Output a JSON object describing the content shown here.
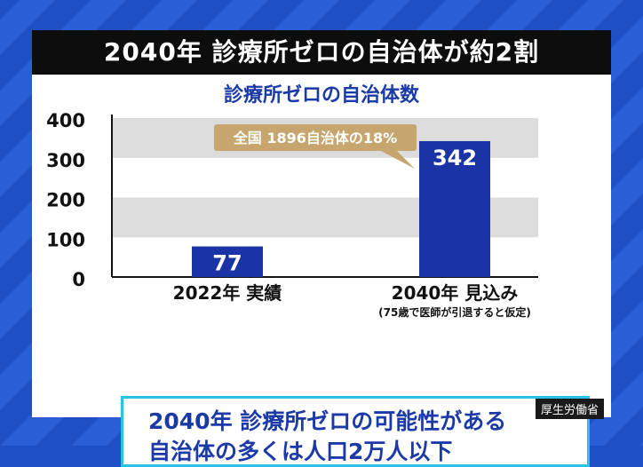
{
  "header": {
    "title": "2040年 診療所ゼロの自治体が約2割"
  },
  "chart_data": {
    "type": "bar",
    "title": "診療所ゼロの自治体数",
    "categories": [
      "2022年 実績",
      "2040年 見込み"
    ],
    "category_notes": [
      "",
      "(75歳で医師が引退すると仮定)"
    ],
    "values": [
      77,
      342
    ],
    "data_labels": [
      "77",
      "342"
    ],
    "ylim": [
      0,
      400
    ],
    "yticks": [
      0,
      100,
      200,
      300,
      400
    ],
    "annotation": "全国 1896自治体の18%",
    "colors": {
      "bar": "#1a34a5",
      "band": "#dcdcdc",
      "title": "#1b3aa8",
      "callout": "#c6a66e"
    }
  },
  "info": {
    "line1": "2040年 診療所ゼロの可能性がある",
    "line2": "自治体の多くは人口2万人以下"
  },
  "source": "厚生労働省"
}
